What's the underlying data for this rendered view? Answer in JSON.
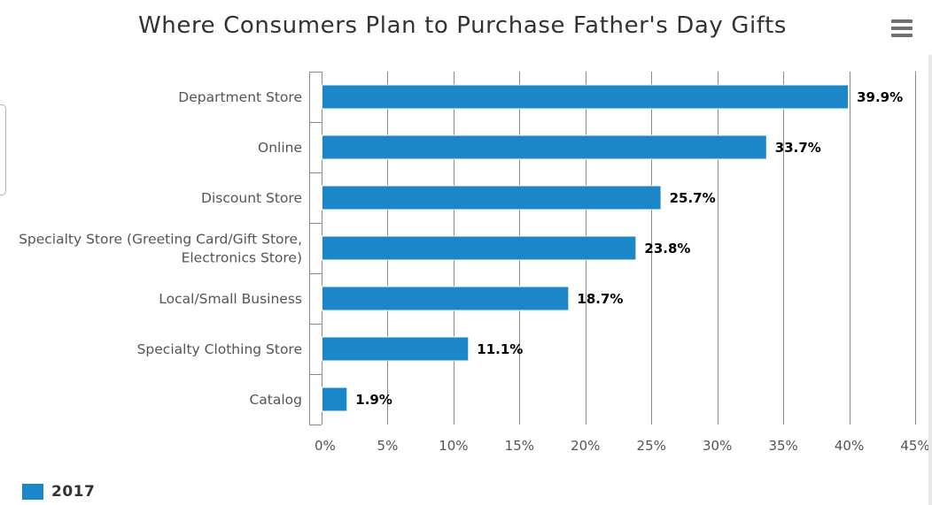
{
  "colors": {
    "bar": "#1b87c9",
    "grid": "#8a8a8a",
    "title": "#333333",
    "tick_label": "#555555",
    "data_label": "#000000"
  },
  "chart_data": {
    "type": "bar",
    "orientation": "horizontal",
    "title": "Where Consumers Plan to Purchase Father's Day Gifts",
    "categories": [
      [
        "Department Store"
      ],
      [
        "Online"
      ],
      [
        "Discount Store"
      ],
      [
        "Specialty Store (Greeting Card/Gift Store,",
        "Electronics Store)"
      ],
      [
        "Local/Small Business"
      ],
      [
        "Specialty Clothing Store"
      ],
      [
        "Catalog"
      ]
    ],
    "series": [
      {
        "name": "2017",
        "values": [
          39.9,
          33.7,
          25.7,
          23.8,
          18.7,
          11.1,
          1.9
        ],
        "data_labels": [
          "39.9%",
          "33.7%",
          "25.7%",
          "23.8%",
          "18.7%",
          "11.1%",
          "1.9%"
        ]
      }
    ],
    "value_axis": {
      "min": 0,
      "max": 45,
      "tick_values": [
        0,
        5,
        10,
        15,
        20,
        25,
        30,
        35,
        40,
        45
      ],
      "tick_labels": [
        "0%",
        "5%",
        "10%",
        "15%",
        "20%",
        "25%",
        "30%",
        "35%",
        "40%",
        "45%"
      ]
    },
    "grid": true,
    "legend_position": "bottom-left"
  },
  "legend": {
    "label": "2017"
  },
  "menu": {
    "icon": "hamburger-menu-icon"
  }
}
